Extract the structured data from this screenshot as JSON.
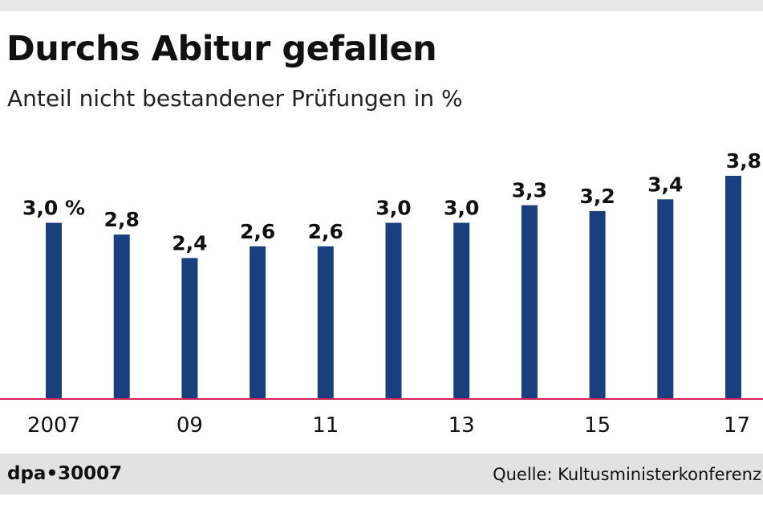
{
  "chart_data": {
    "type": "bar",
    "title": "Durchs Abitur gefallen",
    "subtitle": "Anteil nicht bestandener Prüfungen in %",
    "categories": [
      "2007",
      "2008",
      "2009",
      "2010",
      "2011",
      "2012",
      "2013",
      "2014",
      "2015",
      "2016",
      "2017"
    ],
    "tick_labels": [
      "2007",
      "",
      "09",
      "",
      "11",
      "",
      "13",
      "",
      "15",
      "",
      "17"
    ],
    "values": [
      3.0,
      2.8,
      2.4,
      2.6,
      2.6,
      3.0,
      3.0,
      3.3,
      3.2,
      3.4,
      3.8
    ],
    "value_labels": [
      "3,0 %",
      "2,8",
      "2,4",
      "2,6",
      "2,6",
      "3,0",
      "3,0",
      "3,3",
      "3,2",
      "3,4",
      "3,8"
    ],
    "ylim": [
      0,
      3.8
    ],
    "xlabel": "",
    "ylabel": "",
    "grid": false,
    "bar_color": "#1a3f7f",
    "baseline_color": "#d6245a"
  },
  "footer": {
    "source_id": "dpa•30007",
    "credit": "Quelle: Kultusministerkonferenz"
  }
}
